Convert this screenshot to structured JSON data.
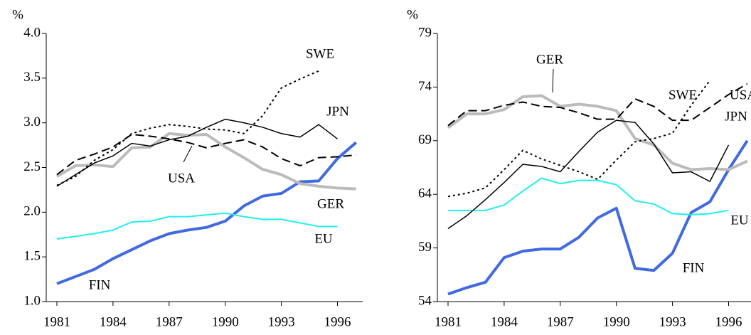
{
  "chart_data": [
    {
      "type": "line",
      "unit": "%",
      "xlim": [
        1980.43,
        1997.35
      ],
      "xticks": [
        1981,
        1984,
        1987,
        1990,
        1993,
        1996
      ],
      "ylim": [
        1,
        4
      ],
      "yticks": [
        {
          "value": 1,
          "label": "1.0"
        },
        1.5,
        {
          "value": 2,
          "label": "2.0"
        },
        2.5,
        {
          "value": 3,
          "label": "3.0"
        },
        3.5,
        {
          "value": 4,
          "label": "4.0"
        }
      ],
      "series": [
        {
          "name": "FIN",
          "color": "#4169e1",
          "style": "solid",
          "line_width": 4,
          "x": [
            1981,
            1982,
            1983,
            1984,
            1985,
            1986,
            1987,
            1988,
            1989,
            1990,
            1991,
            1992,
            1993,
            1994,
            1995,
            1996,
            1997
          ],
          "values": [
            1.2,
            1.28,
            1.36,
            1.48,
            1.58,
            1.68,
            1.76,
            1.8,
            1.83,
            1.9,
            2.07,
            2.18,
            2.21,
            2.34,
            2.35,
            2.6,
            2.78
          ]
        },
        {
          "name": "EU",
          "color": "#22eeee",
          "style": "solid",
          "line_width": 2,
          "x": [
            1981,
            1982,
            1983,
            1984,
            1985,
            1986,
            1987,
            1988,
            1989,
            1990,
            1991,
            1992,
            1993,
            1994,
            1995,
            1996
          ],
          "values": [
            1.7,
            1.73,
            1.76,
            1.8,
            1.89,
            1.9,
            1.95,
            1.95,
            1.97,
            1.99,
            1.95,
            1.92,
            1.92,
            1.88,
            1.84,
            1.84
          ]
        },
        {
          "name": "GER",
          "color": "#bbbbbb",
          "style": "solid",
          "line_width": 4,
          "x": [
            1981,
            1982,
            1983,
            1984,
            1985,
            1986,
            1987,
            1988,
            1989,
            1990,
            1991,
            1992,
            1993,
            1994,
            1995,
            1996,
            1997
          ],
          "values": [
            2.4,
            2.52,
            2.53,
            2.51,
            2.72,
            2.73,
            2.88,
            2.86,
            2.87,
            2.73,
            2.61,
            2.48,
            2.42,
            2.32,
            2.29,
            2.27,
            2.26
          ]
        },
        {
          "name": "USA",
          "color": "#000000",
          "style": "dashed",
          "line_width": 2,
          "x": [
            1981,
            1982,
            1983,
            1984,
            1985,
            1986,
            1987,
            1988,
            1989,
            1990,
            1991,
            1992,
            1993,
            1994,
            1995,
            1996,
            1997
          ],
          "values": [
            2.42,
            2.58,
            2.65,
            2.73,
            2.87,
            2.85,
            2.82,
            2.78,
            2.72,
            2.77,
            2.81,
            2.73,
            2.6,
            2.52,
            2.61,
            2.62,
            2.64
          ]
        },
        {
          "name": "JPN",
          "color": "#000000",
          "style": "solid",
          "line_width": 1.5,
          "x": [
            1981,
            1982,
            1983,
            1984,
            1985,
            1986,
            1987,
            1988,
            1989,
            1990,
            1991,
            1992,
            1993,
            1994,
            1995,
            1996
          ],
          "values": [
            2.29,
            2.42,
            2.55,
            2.63,
            2.77,
            2.74,
            2.81,
            2.85,
            2.95,
            3.04,
            3.0,
            2.95,
            2.88,
            2.84,
            2.98,
            2.82
          ]
        },
        {
          "name": "SWE",
          "color": "#000000",
          "style": "dotted",
          "line_width": 2,
          "x": [
            1981,
            1982,
            1983,
            1984,
            1985,
            1986,
            1987,
            1988,
            1989,
            1990,
            1991,
            1992,
            1993,
            1994,
            1995
          ],
          "values": [
            2.3,
            2.4,
            2.58,
            2.7,
            2.88,
            2.94,
            2.98,
            2.96,
            2.93,
            2.92,
            2.88,
            3.08,
            3.39,
            3.49,
            3.58
          ]
        }
      ]
    },
    {
      "type": "line",
      "unit": "%",
      "xlim": [
        1980.43,
        1997.35
      ],
      "xticks": [
        1981,
        1984,
        1987,
        1990,
        1993,
        1996
      ],
      "ylim": [
        54,
        79
      ],
      "yticks": [
        54,
        59,
        64,
        69,
        74,
        79
      ],
      "series": [
        {
          "name": "FIN",
          "color": "#4169e1",
          "style": "solid",
          "line_width": 4,
          "x": [
            1981,
            1982,
            1983,
            1984,
            1985,
            1986,
            1987,
            1988,
            1989,
            1990,
            1991,
            1992,
            1993,
            1994,
            1995,
            1996,
            1997
          ],
          "values": [
            54.7,
            55.3,
            55.8,
            58.1,
            58.7,
            58.9,
            58.9,
            60.0,
            61.8,
            62.7,
            57.1,
            56.9,
            58.5,
            62.3,
            63.3,
            66.3,
            69.0
          ]
        },
        {
          "name": "EU",
          "color": "#22eeee",
          "style": "solid",
          "line_width": 2,
          "x": [
            1981,
            1982,
            1983,
            1984,
            1985,
            1986,
            1987,
            1988,
            1989,
            1990,
            1991,
            1992,
            1993,
            1994,
            1995,
            1996
          ],
          "values": [
            62.5,
            62.5,
            62.5,
            63.0,
            64.3,
            65.5,
            65.0,
            65.3,
            65.3,
            64.9,
            63.4,
            63.1,
            62.2,
            62.1,
            62.2,
            62.5
          ]
        },
        {
          "name": "GER",
          "color": "#bbbbbb",
          "style": "solid",
          "line_width": 4,
          "x": [
            1981,
            1982,
            1983,
            1984,
            1985,
            1986,
            1987,
            1988,
            1989,
            1990,
            1991,
            1992,
            1993,
            1994,
            1995,
            1996,
            1997
          ],
          "values": [
            70.2,
            71.5,
            71.5,
            71.9,
            73.1,
            73.2,
            72.2,
            72.4,
            72.2,
            71.8,
            69.2,
            68.6,
            66.9,
            66.3,
            66.4,
            66.3,
            67.1
          ]
        },
        {
          "name": "USA",
          "color": "#000000",
          "style": "dashed",
          "line_width": 2,
          "x": [
            1981,
            1982,
            1983,
            1984,
            1985,
            1986,
            1987,
            1988,
            1989,
            1990,
            1991,
            1992,
            1993,
            1994,
            1995,
            1996,
            1997
          ],
          "values": [
            70.4,
            71.8,
            71.8,
            72.3,
            72.6,
            72.2,
            72.1,
            71.6,
            71.0,
            71.0,
            72.9,
            72.2,
            70.9,
            70.9,
            72.1,
            73.3,
            74.3
          ]
        },
        {
          "name": "JPN",
          "color": "#000000",
          "style": "solid",
          "line_width": 1.5,
          "x": [
            1981,
            1982,
            1983,
            1984,
            1985,
            1986,
            1987,
            1988,
            1989,
            1990,
            1991,
            1992,
            1993,
            1994,
            1995,
            1996
          ],
          "values": [
            60.8,
            62.0,
            63.5,
            65.1,
            66.8,
            66.6,
            66.1,
            68.0,
            69.8,
            70.9,
            70.7,
            68.7,
            66.0,
            66.1,
            65.2,
            68.6
          ]
        },
        {
          "name": "SWE",
          "color": "#000000",
          "style": "dotted",
          "line_width": 2,
          "x": [
            1981,
            1982,
            1983,
            1984,
            1985,
            1986,
            1987,
            1988,
            1989,
            1990,
            1991,
            1992,
            1993,
            1994,
            1995
          ],
          "values": [
            63.8,
            64.1,
            64.6,
            66.3,
            68.1,
            67.3,
            66.7,
            66.1,
            65.4,
            67.2,
            68.9,
            69.2,
            69.7,
            72.3,
            74.6
          ]
        }
      ]
    }
  ]
}
